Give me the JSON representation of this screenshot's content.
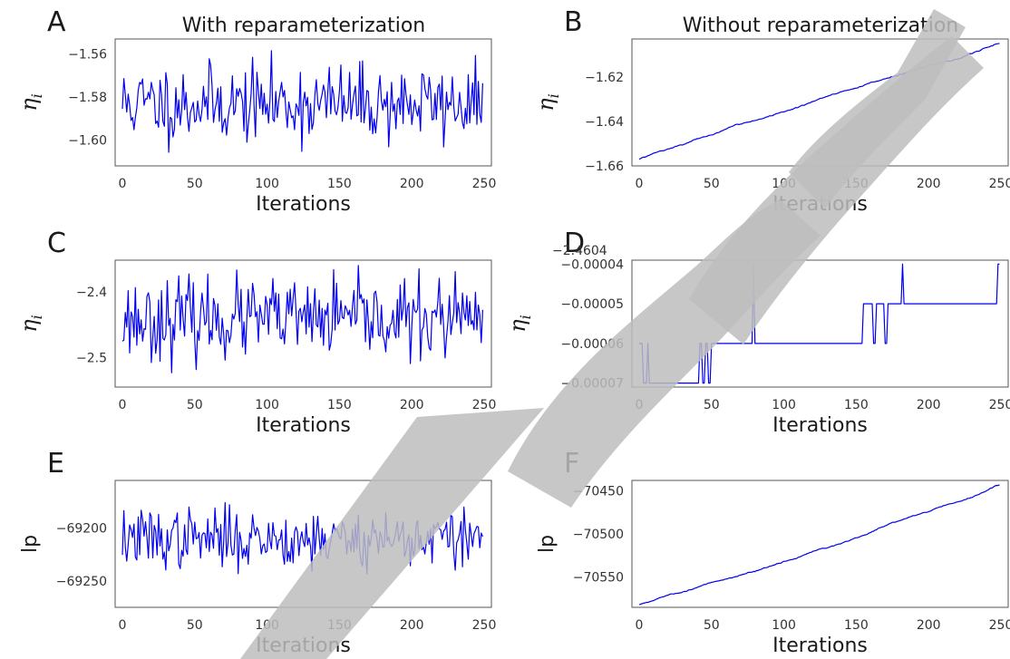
{
  "figure": {
    "col_titles": [
      "With reparameterization",
      "Without reparameterization"
    ]
  },
  "chart_data": [
    {
      "panel": "A",
      "type": "line",
      "xlabel": "Iterations",
      "ylabel": "η_i",
      "ylabel_main": "η",
      "ylabel_sub": "i",
      "xlim": [
        -5,
        255
      ],
      "ylim": [
        -1.612,
        -1.553
      ],
      "xticks": [
        0,
        50,
        100,
        150,
        200,
        250
      ],
      "yticks": [
        -1.6,
        -1.58,
        -1.56
      ],
      "ytick_labels": [
        "−1.60",
        "−1.58",
        "−1.56"
      ],
      "y_offset": "",
      "series": [
        {
          "gen": "noise",
          "seed": 11,
          "n": 250,
          "mean": -1.583,
          "sd": 0.009,
          "min": -1.611,
          "max": -1.555,
          "color": "#0000ee"
        }
      ]
    },
    {
      "panel": "B",
      "type": "line",
      "xlabel": "Iterations",
      "ylabel": "η_i",
      "ylabel_main": "η",
      "ylabel_sub": "i",
      "xlim": [
        -5,
        255
      ],
      "ylim": [
        -1.66,
        -1.603
      ],
      "xticks": [
        0,
        50,
        100,
        150,
        200,
        250
      ],
      "yticks": [
        -1.66,
        -1.64,
        -1.62
      ],
      "ytick_labels": [
        "−1.66",
        "−1.64",
        "−1.62"
      ],
      "y_offset": "",
      "series": [
        {
          "gen": "trend",
          "seed": 7,
          "n": 250,
          "start": -1.657,
          "end": -1.605,
          "jitter": 0.0004,
          "color": "#0000ee"
        }
      ]
    },
    {
      "panel": "C",
      "type": "line",
      "xlabel": "Iterations",
      "ylabel": "η_i",
      "ylabel_main": "η",
      "ylabel_sub": "i",
      "xlim": [
        -5,
        255
      ],
      "ylim": [
        -2.545,
        -2.352
      ],
      "xticks": [
        0,
        50,
        100,
        150,
        200,
        250
      ],
      "yticks": [
        -2.5,
        -2.4
      ],
      "ytick_labels": [
        "−2.5",
        "−2.4"
      ],
      "y_offset": "",
      "series": [
        {
          "gen": "noise",
          "seed": 23,
          "n": 250,
          "mean": -2.442,
          "sd": 0.03,
          "min": -2.54,
          "max": -2.36,
          "color": "#0000ee"
        }
      ]
    },
    {
      "panel": "D",
      "type": "line",
      "xlabel": "Iterations",
      "ylabel": "η_i",
      "ylabel_main": "η",
      "ylabel_sub": "i",
      "xlim": [
        -5,
        255
      ],
      "ylim": [
        -7.1e-05,
        -3.9e-05
      ],
      "xticks": [
        0,
        50,
        100,
        150,
        200,
        250
      ],
      "yticks": [
        -7e-05,
        -6e-05,
        -5e-05,
        -4e-05
      ],
      "ytick_labels": [
        "−0.00007",
        "−0.00006",
        "−0.00005",
        "−0.00004"
      ],
      "y_offset": "−2.4604",
      "series": [
        {
          "gen": "step",
          "n": 250,
          "color": "#0000ee",
          "steps": [
            [
              0,
              -6e-05
            ],
            [
              3,
              -7e-05
            ],
            [
              6,
              -6e-05
            ],
            [
              7,
              -7e-05
            ],
            [
              42,
              -6e-05
            ],
            [
              44,
              -7e-05
            ],
            [
              46,
              -6e-05
            ],
            [
              48,
              -7e-05
            ],
            [
              50,
              -6e-05
            ],
            [
              79,
              -4e-05
            ],
            [
              80,
              -6e-05
            ],
            [
              155,
              -5e-05
            ],
            [
              162,
              -6e-05
            ],
            [
              164,
              -5e-05
            ],
            [
              170,
              -6e-05
            ],
            [
              172,
              -5e-05
            ],
            [
              182,
              -4e-05
            ],
            [
              183,
              -5e-05
            ],
            [
              248,
              -4e-05
            ]
          ]
        }
      ]
    },
    {
      "panel": "E",
      "type": "line",
      "xlabel": "Iterations",
      "ylabel": "lp",
      "ylabel_main": "lp",
      "ylabel_sub": "",
      "xlim": [
        -5,
        255
      ],
      "ylim": [
        -69275,
        -69155
      ],
      "xticks": [
        0,
        50,
        100,
        150,
        200,
        250
      ],
      "yticks": [
        -69250,
        -69200
      ],
      "ytick_labels": [
        "−69250",
        "−69200"
      ],
      "y_offset": "",
      "series": [
        {
          "gen": "noise",
          "seed": 37,
          "n": 250,
          "mean": -69210,
          "sd": 14,
          "min": -69270,
          "max": -69165,
          "color": "#0000ee"
        }
      ]
    },
    {
      "panel": "F",
      "type": "line",
      "xlabel": "Iterations",
      "ylabel": "lp",
      "ylabel_main": "lp",
      "ylabel_sub": "",
      "xlim": [
        -5,
        255
      ],
      "ylim": [
        -70585,
        -70438
      ],
      "xticks": [
        0,
        50,
        100,
        150,
        200,
        250
      ],
      "yticks": [
        -70550,
        -70500,
        -70450
      ],
      "ytick_labels": [
        "−70550",
        "−70500",
        "−70450"
      ],
      "y_offset": "",
      "series": [
        {
          "gen": "trend",
          "seed": 5,
          "n": 250,
          "start": -70582,
          "end": -70443,
          "jitter": 0.9,
          "color": "#0000ee"
        }
      ]
    }
  ]
}
